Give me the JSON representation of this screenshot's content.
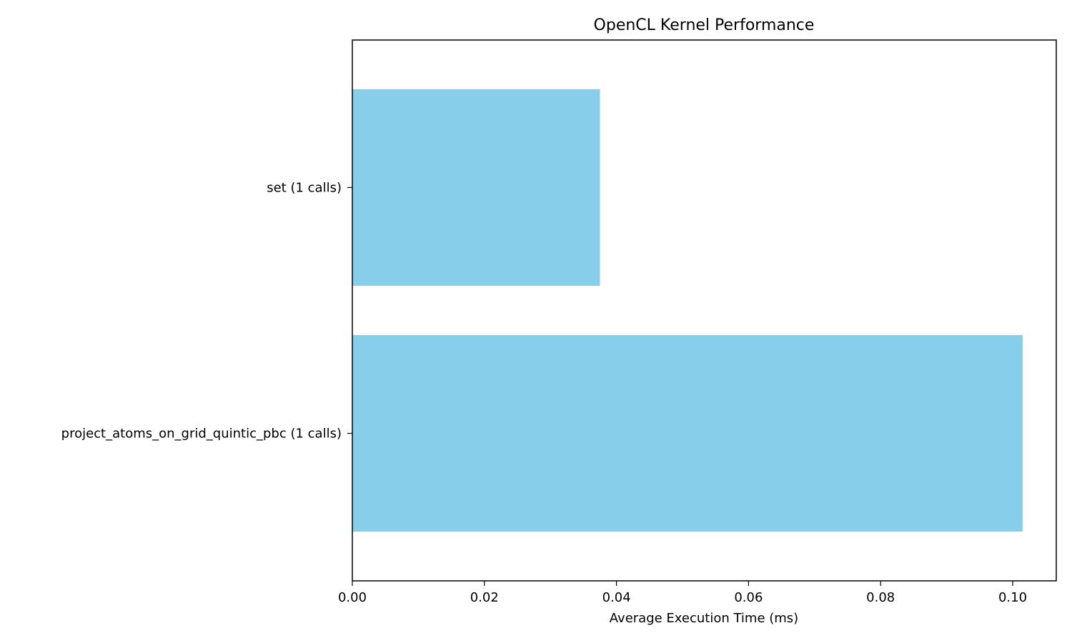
{
  "chart_data": {
    "type": "bar",
    "orientation": "horizontal",
    "title": "OpenCL Kernel Performance",
    "xlabel": "Average Execution Time (ms)",
    "ylabel": "",
    "categories": [
      "set (1 calls)",
      "project_atoms_on_grid_quintic_pbc (1 calls)"
    ],
    "values": [
      0.0375,
      0.1015
    ],
    "xlim": [
      0,
      0.1066
    ],
    "xticks": [
      0.0,
      0.02,
      0.04,
      0.06,
      0.08,
      0.1
    ],
    "xtick_labels": [
      "0.00",
      "0.02",
      "0.04",
      "0.06",
      "0.08",
      "0.10"
    ],
    "bar_color": "#87ceeb",
    "grid": false,
    "legend": "none"
  }
}
